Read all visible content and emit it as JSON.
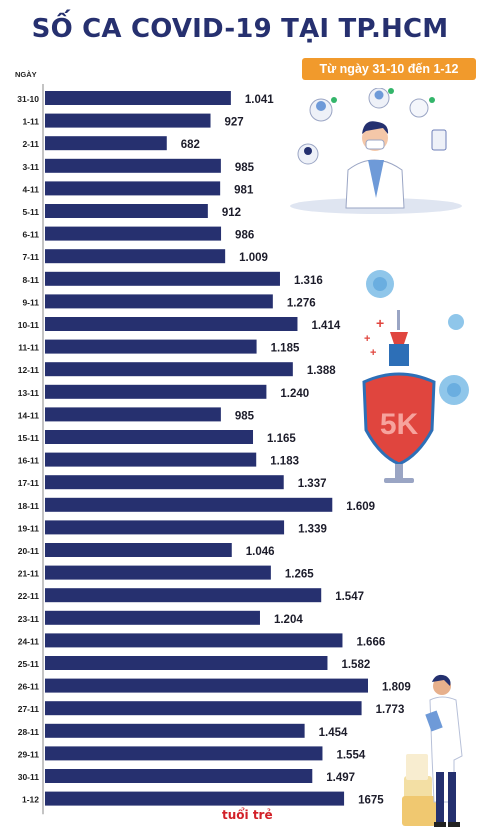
{
  "title": "SỐ CA COVID-19 TẠI TP.HCM",
  "subtitle": "Từ ngày 31-10 đến 1-12",
  "logo_text": "tuổi trẻ",
  "decor_text": "5K",
  "chart_data": {
    "type": "bar",
    "orientation": "horizontal",
    "category_axis_label": "NGÀY",
    "bar_color": "#26306f",
    "categories": [
      "31-10",
      "1-11",
      "2-11",
      "3-11",
      "4-11",
      "5-11",
      "6-11",
      "7-11",
      "8-11",
      "9-11",
      "10-11",
      "11-11",
      "12-11",
      "13-11",
      "14-11",
      "15-11",
      "16-11",
      "17-11",
      "18-11",
      "19-11",
      "20-11",
      "21-11",
      "22-11",
      "23-11",
      "24-11",
      "25-11",
      "26-11",
      "27-11",
      "28-11",
      "29-11",
      "30-11",
      "1-12"
    ],
    "values": [
      1041,
      927,
      682,
      985,
      981,
      912,
      986,
      1009,
      1316,
      1276,
      1414,
      1185,
      1388,
      1240,
      985,
      1165,
      1183,
      1337,
      1609,
      1339,
      1046,
      1265,
      1547,
      1204,
      1666,
      1582,
      1809,
      1773,
      1454,
      1554,
      1497,
      1675
    ],
    "value_labels": [
      "1.041",
      "927",
      "682",
      "985",
      "981",
      "912",
      "986",
      "1.009",
      "1.316",
      "1.276",
      "1.414",
      "1.185",
      "1.388",
      "1.240",
      "985",
      "1.165",
      "1.183",
      "1.337",
      "1.609",
      "1.339",
      "1.046",
      "1.265",
      "1.547",
      "1.204",
      "1.666",
      "1.582",
      "1.809",
      "1.773",
      "1.454",
      "1.554",
      "1.497",
      "1675"
    ]
  }
}
